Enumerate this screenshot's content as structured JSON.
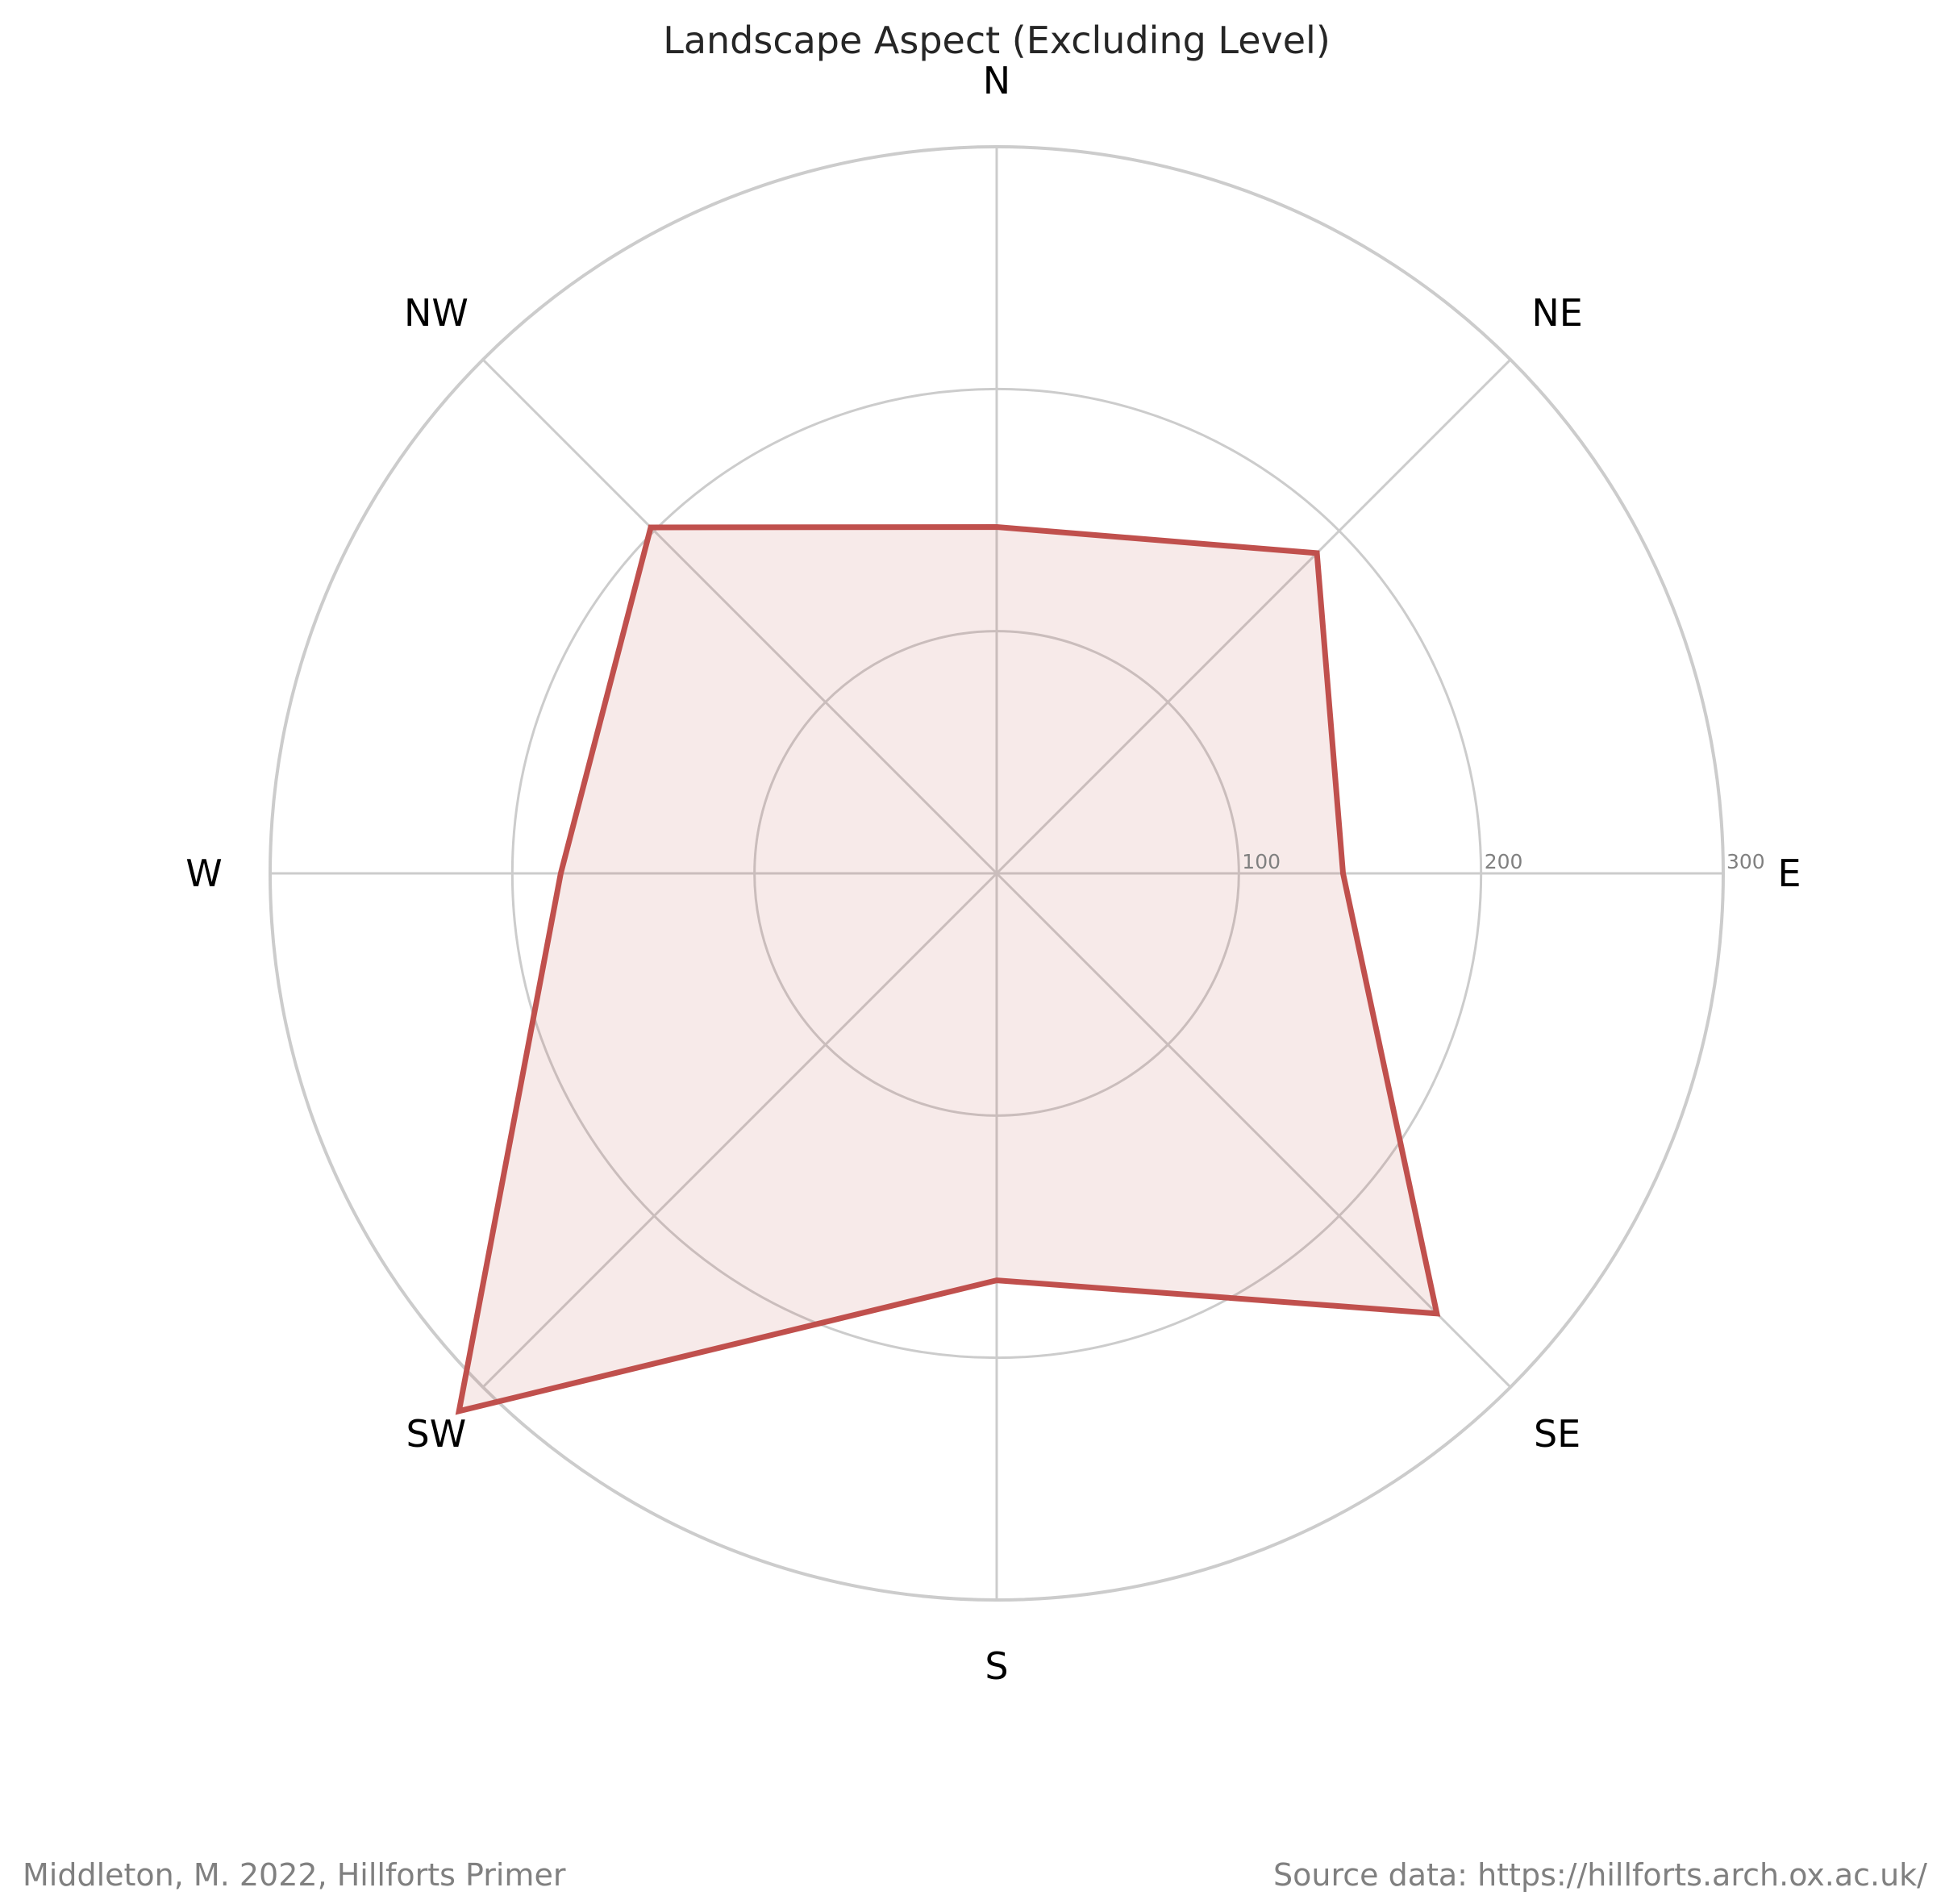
{
  "chart_data": {
    "type": "radar",
    "title": "Landscape Aspect (Excluding Level)",
    "categories": [
      "N",
      "NE",
      "E",
      "SE",
      "S",
      "SW",
      "W",
      "NW"
    ],
    "values": [
      143,
      187,
      143,
      257,
      168,
      314,
      180,
      202
    ],
    "rlim": [
      0,
      300
    ],
    "radial_ticks": [
      100,
      200,
      300
    ],
    "radial_tick_labels": [
      "100",
      "200",
      "300"
    ],
    "grid": true,
    "series_color": "#c0504d",
    "fill_color": "#f6eaeb",
    "grid_color": "#cccccc"
  },
  "footer": {
    "credit": "Middleton, M. 2022, Hillforts Primer",
    "source": "Source data: https://hillforts.arch.ox.ac.uk/"
  }
}
